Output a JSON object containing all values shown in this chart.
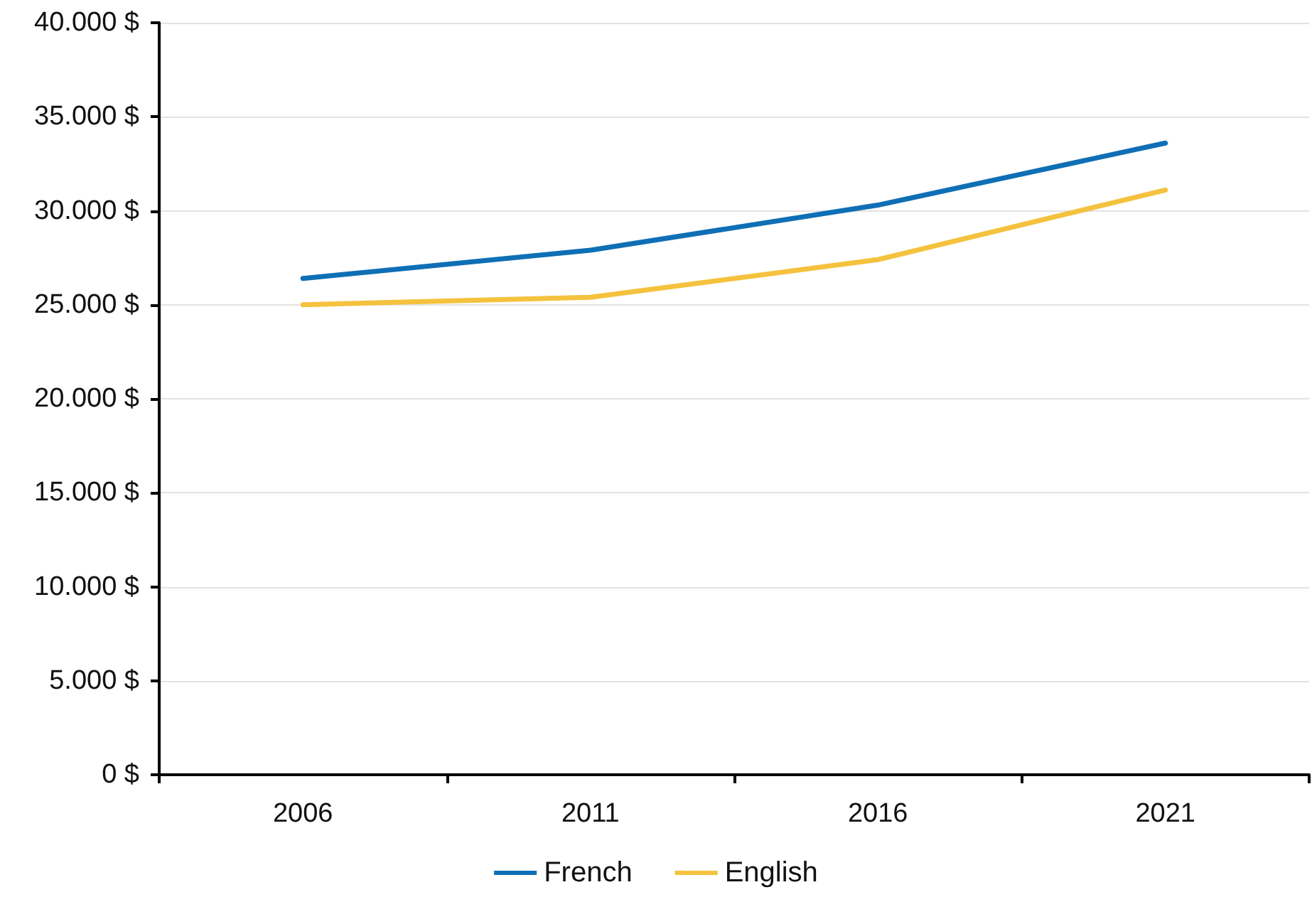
{
  "chart_data": {
    "type": "line",
    "categories": [
      "2006",
      "2011",
      "2016",
      "2021"
    ],
    "series": [
      {
        "name": "French",
        "color": "#0f6fb5",
        "values": [
          26400,
          27900,
          30300,
          33600
        ]
      },
      {
        "name": "English",
        "color": "#f5c23e",
        "values": [
          25000,
          25400,
          27400,
          31100
        ]
      }
    ],
    "ylim": [
      0,
      40000
    ],
    "yticks": [
      {
        "value": 0,
        "label": "0 $"
      },
      {
        "value": 5000,
        "label": "5.000 $"
      },
      {
        "value": 10000,
        "label": "10.000 $"
      },
      {
        "value": 15000,
        "label": "15.000 $"
      },
      {
        "value": 20000,
        "label": "20.000 $"
      },
      {
        "value": 25000,
        "label": "25.000 $"
      },
      {
        "value": 30000,
        "label": "30.000 $"
      },
      {
        "value": 35000,
        "label": "35.000 $"
      },
      {
        "value": 40000,
        "label": "40.000 $"
      }
    ],
    "grid": "y",
    "legend": "bottom",
    "marker": "none",
    "line_style": "solid"
  }
}
